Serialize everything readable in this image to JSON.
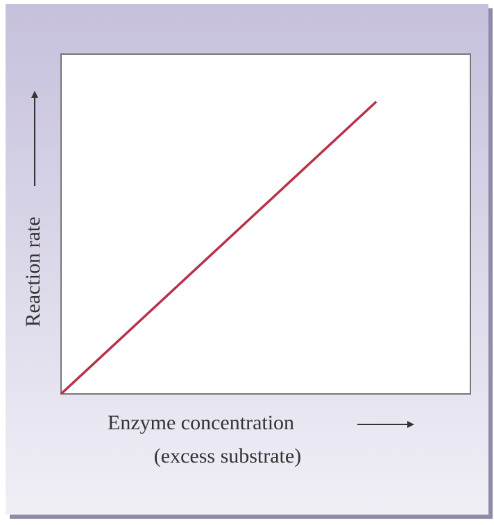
{
  "chart_data": {
    "type": "line",
    "x_label": "Enzyme concentration",
    "x_sublabel": "(excess substrate)",
    "y_label": "Reaction rate",
    "x": [
      0,
      77
    ],
    "series": [
      {
        "color": "#b8304a",
        "values": [
          0,
          86
        ]
      }
    ],
    "xlim": [
      0,
      100
    ],
    "ylim": [
      0,
      100
    ]
  }
}
